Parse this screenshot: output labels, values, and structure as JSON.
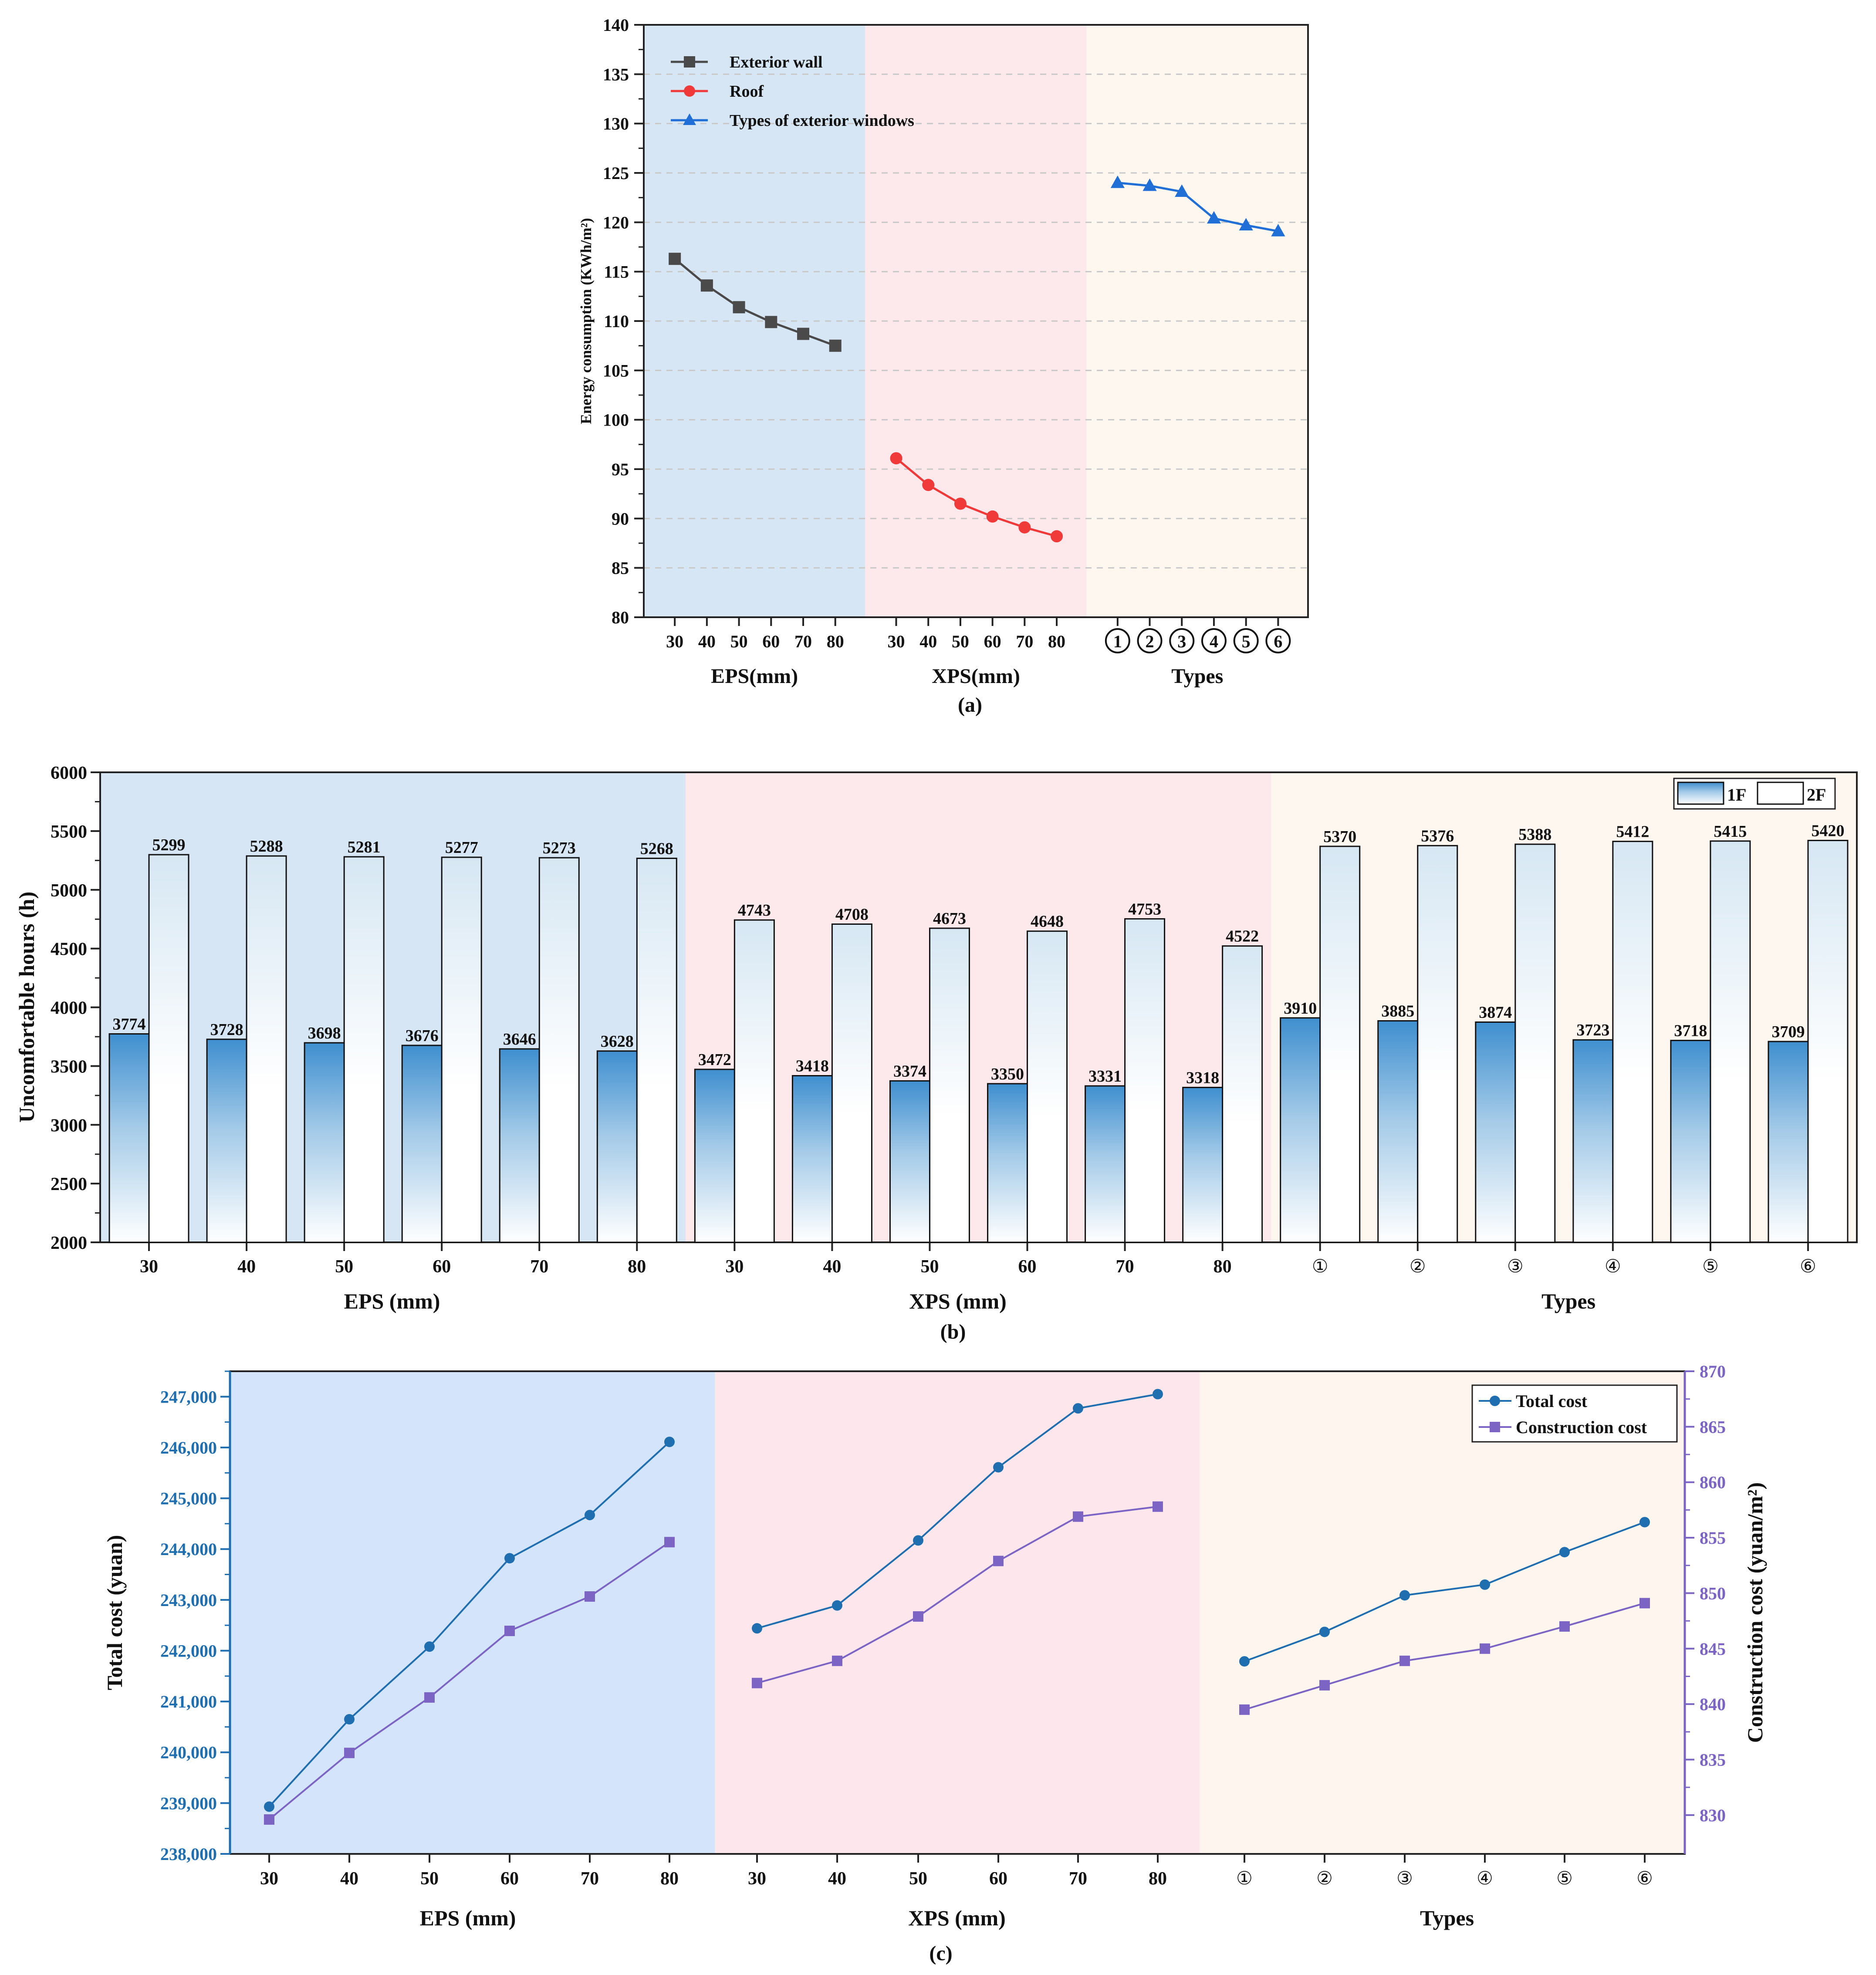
{
  "chart_data": [
    {
      "id": "a",
      "type": "line",
      "caption": "(a)",
      "ylabel": "Energy consumption (KWh/m²)",
      "ylim": [
        80,
        140
      ],
      "yticks": [
        80,
        85,
        90,
        95,
        100,
        105,
        110,
        115,
        120,
        125,
        130,
        135,
        140
      ],
      "legend": {
        "position": "top-left"
      },
      "groups": [
        {
          "label": "EPS(mm)",
          "color": "#d6e6f5",
          "categories": [
            "30",
            "40",
            "50",
            "60",
            "70",
            "80"
          ]
        },
        {
          "label": "XPS(mm)",
          "color": "#fde8ec",
          "categories": [
            "30",
            "40",
            "50",
            "60",
            "70",
            "80"
          ]
        },
        {
          "label": "Types",
          "color": "#fef7ef",
          "categories": [
            "①",
            "②",
            "③",
            "④",
            "⑤",
            "⑥"
          ]
        }
      ],
      "series": [
        {
          "name": "Exterior wall",
          "group": 0,
          "color": "#4a4a4a",
          "marker": "square",
          "values": [
            116.3,
            113.6,
            111.4,
            109.9,
            108.7,
            107.5
          ]
        },
        {
          "name": "Roof",
          "group": 1,
          "color": "#f03a3a",
          "marker": "circle",
          "values": [
            96.1,
            93.4,
            91.5,
            90.2,
            89.1,
            88.2
          ]
        },
        {
          "name": "Types of exterior windows",
          "group": 2,
          "color": "#1f6fd6",
          "marker": "triangle",
          "values": [
            124.0,
            123.7,
            123.1,
            120.4,
            119.7,
            119.1
          ]
        }
      ]
    },
    {
      "id": "b",
      "type": "bar",
      "caption": "(b)",
      "ylabel": "Uncomfortable hours (h)",
      "ylim": [
        2000,
        6000
      ],
      "yticks": [
        2000,
        2500,
        3000,
        3500,
        4000,
        4500,
        5000,
        5500,
        6000
      ],
      "legend": {
        "position": "top-right"
      },
      "groups": [
        {
          "label": "EPS (mm)",
          "color": "#d6e6f5",
          "categories": [
            "30",
            "40",
            "50",
            "60",
            "70",
            "80"
          ]
        },
        {
          "label": "XPS (mm)",
          "color": "#fde8ec",
          "categories": [
            "30",
            "40",
            "50",
            "60",
            "70",
            "80"
          ]
        },
        {
          "label": "Types",
          "color": "#fef7ef",
          "categories": [
            "①",
            "②",
            "③",
            "④",
            "⑤",
            "⑥"
          ]
        }
      ],
      "series": [
        {
          "name": "1F",
          "values": [
            3774,
            3728,
            3698,
            3676,
            3646,
            3628,
            3472,
            3418,
            3374,
            3350,
            3331,
            3318,
            3910,
            3885,
            3874,
            3723,
            3718,
            3709
          ]
        },
        {
          "name": "2F",
          "values": [
            5299,
            5288,
            5281,
            5277,
            5273,
            5268,
            4743,
            4708,
            4673,
            4648,
            4753,
            4522,
            5370,
            5376,
            5388,
            5412,
            5415,
            5420
          ]
        }
      ]
    },
    {
      "id": "c",
      "type": "line",
      "caption": "(c)",
      "ylabel_left": "Total cost (yuan)",
      "ylabel_right": "Construction cost (yuan/m²)",
      "ylim_left": [
        238000,
        247500
      ],
      "yticks_left": [
        "238,000",
        "239,000",
        "240,000",
        "241,000",
        "242,000",
        "243,000",
        "244,000",
        "245,000",
        "246,000",
        "247,000"
      ],
      "ylim_right": [
        826.5,
        870
      ],
      "yticks_right": [
        "830",
        "835",
        "840",
        "845",
        "850",
        "855",
        "860",
        "865",
        "870"
      ],
      "legend": {
        "position": "top-right"
      },
      "groups": [
        {
          "label": "EPS (mm)",
          "color": "#d4e4fb",
          "categories": [
            "30",
            "40",
            "50",
            "60",
            "70",
            "80"
          ]
        },
        {
          "label": "XPS (mm)",
          "color": "#fde6ec",
          "categories": [
            "30",
            "40",
            "50",
            "60",
            "70",
            "80"
          ]
        },
        {
          "label": "Types",
          "color": "#fef6ee",
          "categories": [
            "①",
            "②",
            "③",
            "④",
            "⑤",
            "⑥"
          ]
        }
      ],
      "series": [
        {
          "name": "Total cost",
          "axis": "left",
          "color": "#1e6eb0",
          "marker": "circle",
          "values": [
            238930,
            240650,
            242080,
            243820,
            244670,
            246110,
            242440,
            242890,
            244170,
            245610,
            246770,
            247050,
            241790,
            242370,
            243090,
            243300,
            243940,
            244530
          ]
        },
        {
          "name": "Construction cost",
          "axis": "right",
          "color": "#7b64c4",
          "marker": "square",
          "values": [
            829.6,
            835.6,
            840.6,
            846.6,
            849.7,
            854.6,
            841.9,
            843.9,
            847.9,
            852.9,
            856.9,
            857.8,
            839.5,
            841.7,
            843.9,
            845.0,
            847.0,
            849.1
          ]
        }
      ]
    }
  ]
}
